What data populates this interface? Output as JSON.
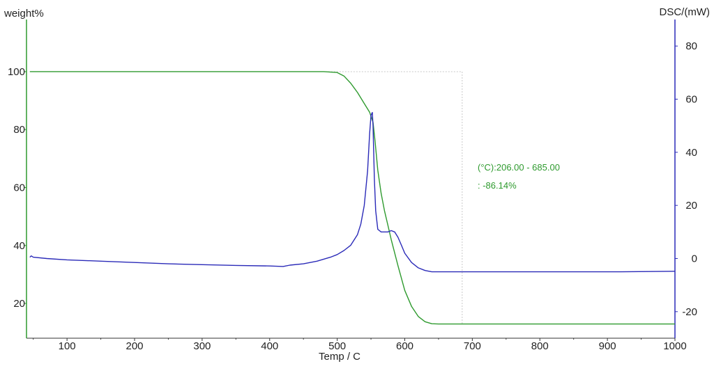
{
  "chart_data": {
    "type": "line",
    "xlabel": "Temp / C",
    "ylabel_left": "weight%",
    "ylabel_right": "DSC/(mW)",
    "x_ticks": [
      100,
      200,
      300,
      400,
      500,
      600,
      700,
      800,
      900,
      1000
    ],
    "y_left_ticks": [
      20,
      40,
      60,
      80,
      100
    ],
    "y_right_ticks": [
      -20,
      0,
      20,
      40,
      60,
      80
    ],
    "xlim": [
      40,
      1000
    ],
    "ylim_left": [
      8,
      118
    ],
    "ylim_right": [
      -30,
      90
    ],
    "grid": false,
    "colors": {
      "weight": "#2e9a2e",
      "dsc": "#2a2ab8",
      "left_axis": "#2e9a2e",
      "right_axis": "#2a2ab8",
      "annotation": "#2e9a2e",
      "guide": "#c8c8c8"
    },
    "series": [
      {
        "key": "weight",
        "axis": "left",
        "x": [
          45,
          100,
          200,
          300,
          400,
          480,
          500,
          510,
          520,
          530,
          540,
          548,
          553,
          556,
          560,
          565,
          570,
          575,
          580,
          590,
          600,
          610,
          620,
          630,
          640,
          650,
          700,
          800,
          900,
          1000
        ],
        "y": [
          100,
          100,
          100,
          100,
          100,
          100,
          99.7,
          98.5,
          96,
          92.8,
          89,
          86,
          82.5,
          76,
          66,
          58,
          52,
          47,
          42,
          33,
          24.5,
          19,
          15.5,
          13.7,
          13,
          12.9,
          12.9,
          12.9,
          12.9,
          12.9
        ]
      },
      {
        "key": "dsc",
        "axis": "right",
        "x": [
          45,
          47,
          50,
          70,
          100,
          150,
          200,
          250,
          300,
          350,
          400,
          420,
          430,
          450,
          470,
          490,
          500,
          510,
          520,
          530,
          535,
          540,
          545,
          548,
          550,
          552,
          553,
          555,
          557,
          560,
          565,
          570,
          575,
          580,
          585,
          590,
          595,
          600,
          610,
          620,
          630,
          640,
          660,
          700,
          800,
          900,
          920,
          1000
        ],
        "y": [
          0.5,
          1,
          0.5,
          0,
          -0.5,
          -1,
          -1.5,
          -2,
          -2.3,
          -2.6,
          -2.8,
          -3,
          -2.5,
          -2,
          -1,
          0.5,
          1.5,
          3,
          5,
          9,
          13,
          20,
          33,
          47,
          54,
          55,
          50,
          30,
          18,
          11,
          10,
          10,
          10,
          10.5,
          10,
          8,
          5,
          2,
          -1.5,
          -3.5,
          -4.5,
          -5,
          -5,
          -5,
          -5,
          -5,
          -5,
          -4.8
        ]
      }
    ],
    "annotations": [
      {
        "text": "(°C):206.00 - 685.00"
      },
      {
        "text": ":  -86.14%"
      }
    ],
    "guide": {
      "x_start": 206,
      "x_end": 685,
      "level": 100,
      "bottom": 13
    }
  }
}
